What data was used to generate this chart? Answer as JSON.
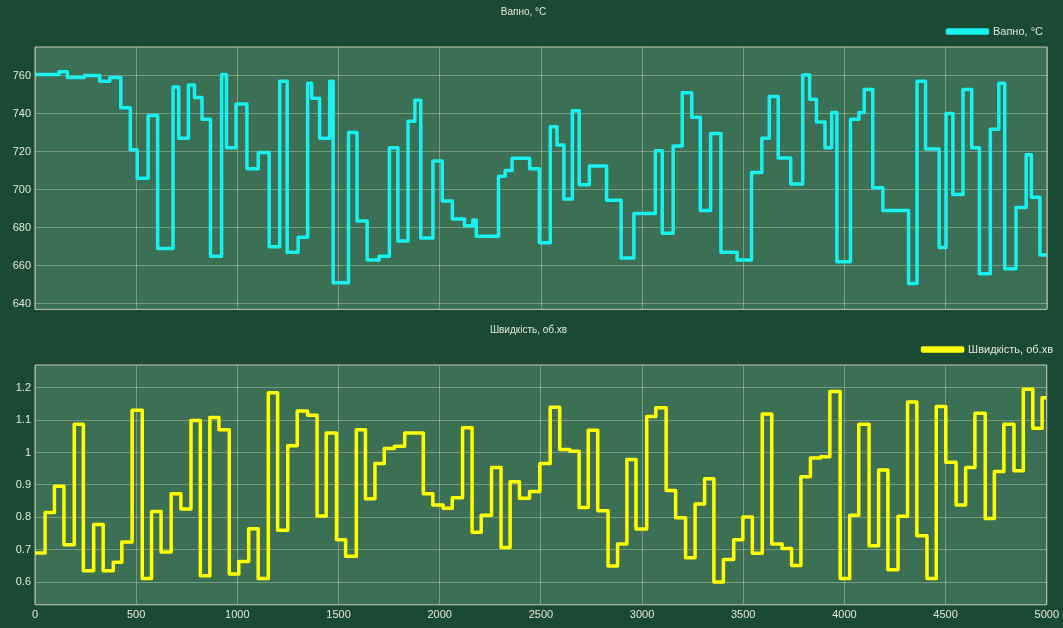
{
  "chart_data": [
    {
      "type": "step",
      "title": "Вапно, °C",
      "xlim": [
        0,
        5000
      ],
      "xticks": [
        0,
        500,
        1000,
        1500,
        2000,
        2500,
        3000,
        3500,
        4000,
        4500,
        5000
      ],
      "ylim": [
        637,
        775
      ],
      "yticks": [
        640,
        660,
        680,
        700,
        720,
        740,
        760
      ],
      "grid": true,
      "legend": "top right",
      "tick_labels": "y",
      "x": [
        0,
        118,
        160,
        244,
        320,
        370,
        424,
        471,
        505,
        559,
        606,
        682,
        710,
        758,
        788,
        825,
        867,
        922,
        946,
        993,
        1047,
        1103,
        1157,
        1209,
        1246,
        1300,
        1347,
        1367,
        1406,
        1456,
        1473,
        1549,
        1591,
        1641,
        1700,
        1751,
        1793,
        1843,
        1877,
        1906,
        1966,
        2012,
        2062,
        2122,
        2163,
        2180,
        2290,
        2323,
        2357,
        2444,
        2492,
        2546,
        2579,
        2613,
        2655,
        2689,
        2739,
        2824,
        2896,
        2959,
        3065,
        3099,
        3153,
        3198,
        3245,
        3287,
        3338,
        3389,
        3469,
        3540,
        3591,
        3628,
        3672,
        3734,
        3793,
        3827,
        3861,
        3903,
        3936,
        3962,
        4029,
        4071,
        4097,
        4139,
        4189,
        4316,
        4358,
        4400,
        4467,
        4501,
        4535,
        4585,
        4628,
        4666,
        4720,
        4762,
        4791,
        4847,
        4897,
        4923,
        4965,
        5000
      ],
      "series": [
        {
          "name": "Вапно, °C",
          "color": "#19f0f0",
          "values": [
            760.5,
            762,
            759,
            760,
            757,
            759,
            743,
            721,
            706,
            739,
            669,
            754,
            727,
            755,
            748.5,
            737,
            665,
            760.5,
            722,
            745,
            711,
            719.5,
            670,
            757,
            667,
            675,
            756,
            748,
            727,
            757,
            651,
            730,
            683.5,
            663,
            665,
            722,
            673,
            736,
            747,
            674.5,
            715,
            694,
            684.5,
            681,
            684,
            675.5,
            707,
            710,
            716.5,
            711,
            672,
            733,
            723.5,
            695,
            741.5,
            702.5,
            712.4,
            694.4,
            664,
            687.5,
            720.4,
            677,
            723,
            751,
            738,
            689,
            729.5,
            667,
            663,
            709,
            727,
            749,
            716.6,
            703,
            760.3,
            747.5,
            735.5,
            722,
            740.6,
            662,
            737,
            740.6,
            752.6,
            701,
            689,
            650.6,
            757,
            721.4,
            669.5,
            740,
            697.4,
            752.6,
            722,
            655.8,
            731.7,
            756,
            658.4,
            690.6,
            718.3,
            696,
            665.6,
            665.6
          ]
        }
      ]
    },
    {
      "type": "step",
      "title": "Швидкість, об.хв",
      "xlim": [
        0,
        5000
      ],
      "xticks": [
        0,
        500,
        1000,
        1500,
        2000,
        2500,
        3000,
        3500,
        4000,
        4500,
        5000
      ],
      "ylim": [
        0.53,
        1.27
      ],
      "yticks": [
        0.6,
        0.7,
        0.8,
        0.9,
        1,
        1.1,
        1.2
      ],
      "grid": true,
      "legend": "top right",
      "x": [
        0,
        50,
        96,
        143,
        194,
        239,
        290,
        337,
        387,
        429,
        480,
        530,
        576,
        623,
        673,
        721,
        771,
        817,
        864,
        909,
        960,
        1007,
        1056,
        1103,
        1153,
        1199,
        1249,
        1296,
        1347,
        1394,
        1439,
        1490,
        1535,
        1588,
        1633,
        1680,
        1726,
        1776,
        1827,
        1919,
        1966,
        2017,
        2062,
        2113,
        2160,
        2205,
        2256,
        2303,
        2348,
        2394,
        2444,
        2495,
        2546,
        2593,
        2643,
        2689,
        2734,
        2781,
        2832,
        2879,
        2925,
        2970,
        3023,
        3068,
        3119,
        3166,
        3215,
        3262,
        3309,
        3355,
        3402,
        3453,
        3498,
        3545,
        3594,
        3641,
        3692,
        3739,
        3785,
        3832,
        3882,
        3928,
        3979,
        4026,
        4071,
        4122,
        4169,
        4215,
        4265,
        4312,
        4358,
        4408,
        4454,
        4501,
        4552,
        4599,
        4645,
        4696,
        4741,
        4788,
        4838,
        4884,
        4931,
        4977,
        5000
      ],
      "series": [
        {
          "name": "Швидкість, об.хв",
          "color": "#ffff00",
          "values": [
            0.69,
            0.815,
            0.896,
            0.715,
            1.087,
            0.635,
            0.778,
            0.635,
            0.661,
            0.724,
            1.13,
            0.611,
            0.818,
            0.693,
            0.873,
            0.826,
            1.099,
            0.62,
            1.108,
            1.07,
            0.625,
            0.664,
            0.765,
            0.611,
            1.184,
            0.76,
            1.021,
            1.128,
            1.115,
            0.804,
            1.06,
            0.731,
            0.68,
            1.07,
            0.857,
            0.966,
            1.012,
            1.019,
            1.06,
            0.873,
            0.838,
            0.828,
            0.86,
            1.076,
            0.754,
            0.806,
            0.954,
            0.707,
            0.91,
            0.859,
            0.88,
            0.966,
            1.14,
            1.009,
            1.004,
            0.83,
            1.069,
            0.82,
            0.65,
            0.718,
            0.978,
            0.764,
            1.111,
            1.138,
            0.883,
            0.799,
            0.675,
            0.841,
            0.919,
            0.6,
            0.67,
            0.731,
            0.801,
            0.689,
            1.119,
            0.718,
            0.704,
            0.651,
            0.925,
            0.983,
            0.987,
            1.188,
            0.611,
            0.806,
            1.087,
            0.712,
            0.946,
            0.638,
            0.803,
            1.156,
            0.743,
            0.611,
            1.142,
            0.97,
            0.838,
            0.954,
            1.121,
            0.796,
            0.941,
            1.087,
            0.944,
            1.195,
            1.075,
            1.169,
            1.169
          ]
        }
      ]
    }
  ]
}
